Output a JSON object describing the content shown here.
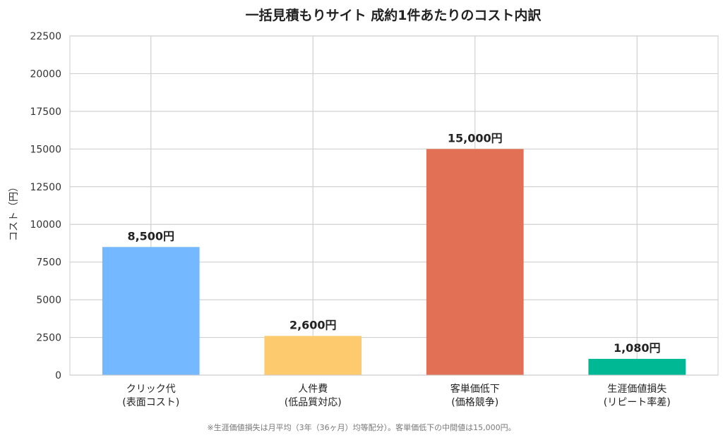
{
  "chart_data": {
    "type": "bar",
    "title": "一括見積もりサイト 成約1件あたりのコスト内訳",
    "xlabel": "",
    "ylabel": "コスト（円）",
    "ylim": [
      0,
      22500
    ],
    "yticks": [
      0,
      2500,
      5000,
      7500,
      10000,
      12500,
      15000,
      17500,
      20000,
      22500
    ],
    "grid": true,
    "categories": [
      [
        "クリック代",
        "(表面コスト)"
      ],
      [
        "人件費",
        "(低品質対応)"
      ],
      [
        "客単価低下",
        "(価格競争)"
      ],
      [
        "生涯価値損失",
        "(リピート率差)"
      ]
    ],
    "values": [
      8500,
      2600,
      15000,
      1080
    ],
    "data_labels": [
      "8,500円",
      "2,600円",
      "15,000円",
      "1,080円"
    ],
    "colors": [
      "#74b9ff",
      "#fdcb6e",
      "#e17055",
      "#00b894"
    ],
    "footnote": "※生涯価値損失は月平均（3年（36ヶ月）均等配分）。客単価低下の中間値は15,000円。"
  }
}
